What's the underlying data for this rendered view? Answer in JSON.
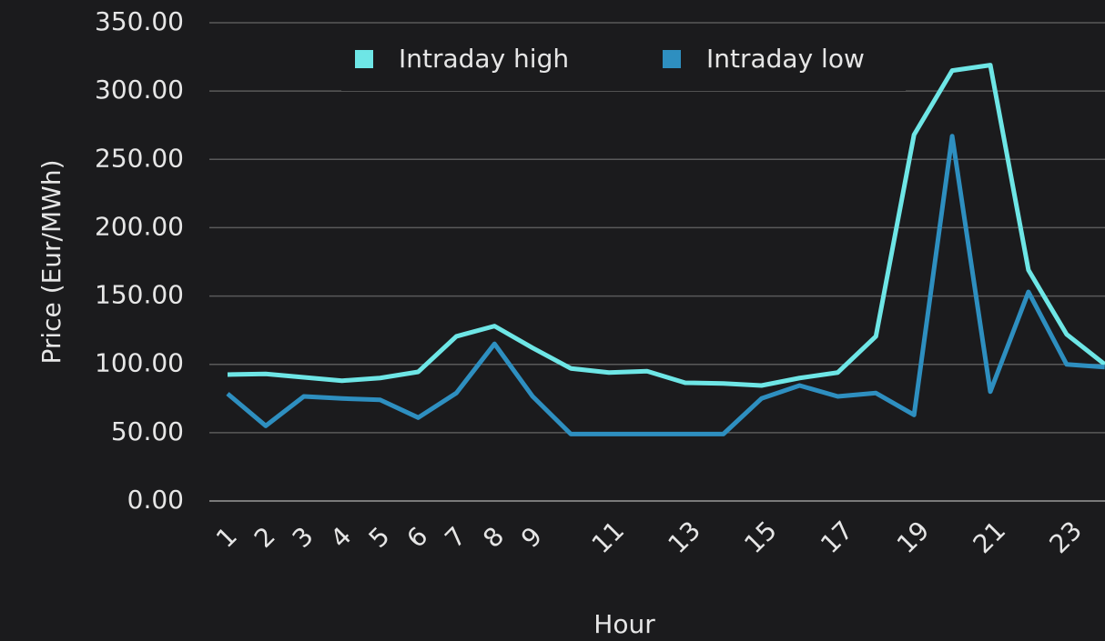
{
  "chart_data": {
    "type": "line",
    "xlabel": "Hour",
    "ylabel": "Price (Eur/MWh)",
    "categories": [
      "1",
      "2",
      "3",
      "4",
      "5",
      "6",
      "7",
      "8",
      "9",
      null,
      "11",
      null,
      "13",
      null,
      "15",
      null,
      "17",
      null,
      "19",
      null,
      "21",
      null,
      "23",
      null
    ],
    "series": [
      {
        "name": "Intraday high",
        "color": "#6ee6e6",
        "values": [
          92.5,
          93,
          90.5,
          88,
          90,
          94.5,
          120.5,
          128,
          112,
          97,
          94,
          95,
          86.5,
          86,
          84.5,
          90,
          94,
          120.5,
          268,
          315,
          319,
          169,
          122,
          100
        ]
      },
      {
        "name": "Intraday low",
        "color": "#2e8fc0",
        "values": [
          78.5,
          55,
          76.5,
          75,
          74,
          61,
          79,
          115,
          76.5,
          49,
          49,
          49,
          49,
          49,
          75,
          84.5,
          76.5,
          79,
          63,
          267,
          80,
          153,
          100,
          98
        ]
      }
    ],
    "ylim": [
      0,
      350
    ],
    "yticks": [
      {
        "value": 0,
        "label": "0.00"
      },
      {
        "value": 50,
        "label": "50.00"
      },
      {
        "value": 100,
        "label": "100.00"
      },
      {
        "value": 150,
        "label": "150.00"
      },
      {
        "value": 200,
        "label": "200.00"
      },
      {
        "value": 250,
        "label": "250.00"
      },
      {
        "value": 300,
        "label": "300.00"
      },
      {
        "value": 350,
        "label": "350.00"
      }
    ],
    "grid": true,
    "legend": "top"
  }
}
